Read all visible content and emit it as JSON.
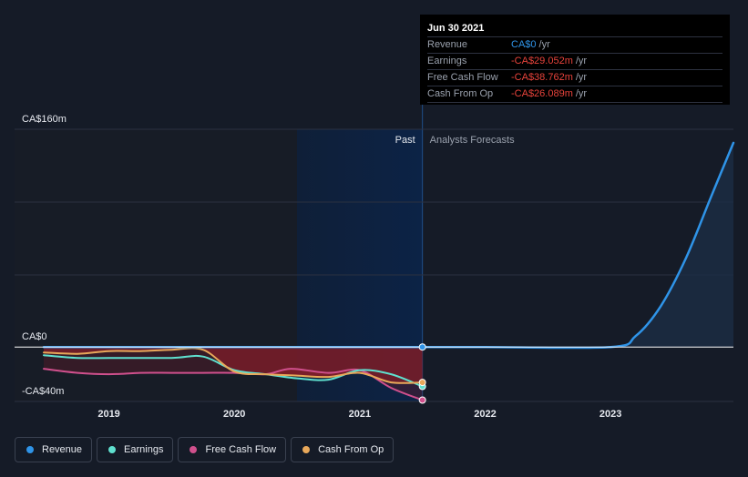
{
  "tooltip": {
    "date": "Jun 30 2021",
    "rows": [
      {
        "name": "Revenue",
        "value": "CA$0",
        "unit": "/yr",
        "negative": false
      },
      {
        "name": "Earnings",
        "value": "-CA$29.052m",
        "unit": "/yr",
        "negative": true
      },
      {
        "name": "Free Cash Flow",
        "value": "-CA$38.762m",
        "unit": "/yr",
        "negative": true
      },
      {
        "name": "Cash From Op",
        "value": "-CA$26.089m",
        "unit": "/yr",
        "negative": true
      }
    ]
  },
  "legend": [
    {
      "label": "Revenue",
      "color": "#2f94e8"
    },
    {
      "label": "Earnings",
      "color": "#5fe0cf"
    },
    {
      "label": "Free Cash Flow",
      "color": "#d0508d"
    },
    {
      "label": "Cash From Op",
      "color": "#e8a85a"
    }
  ],
  "chart_data": {
    "type": "line",
    "y_tick_labels": [
      "CA$160m",
      "CA$0",
      "-CA$40m"
    ],
    "ylim": [
      -40,
      160
    ],
    "x_tick_labels": [
      "2019",
      "2020",
      "2021",
      "2022",
      "2023"
    ],
    "xlim": [
      2018.48,
      2023.98
    ],
    "past_label": "Past",
    "forecast_label": "Analysts Forecasts",
    "divider_x": 2021.5,
    "highlight_start_x": 2020.5,
    "y_unit": "CA$m",
    "series": [
      {
        "name": "Revenue",
        "color": "#2f94e8",
        "x": [
          2018.48,
          2019.0,
          2020.0,
          2021.0,
          2021.5,
          2022.0,
          2023.0,
          2023.2,
          2023.4,
          2023.6,
          2023.8,
          2023.98
        ],
        "y": [
          0,
          0,
          0,
          0,
          0,
          0,
          0,
          8,
          30,
          65,
          110,
          150
        ]
      },
      {
        "name": "Earnings",
        "color": "#5fe0cf",
        "x": [
          2018.48,
          2018.75,
          2019.0,
          2019.5,
          2019.75,
          2020.0,
          2020.25,
          2020.5,
          2020.75,
          2021.0,
          2021.25,
          2021.5
        ],
        "y": [
          -6,
          -8,
          -8,
          -8,
          -7,
          -17,
          -20,
          -23,
          -24,
          -17,
          -20,
          -29
        ]
      },
      {
        "name": "Free Cash Flow",
        "color": "#d0508d",
        "x": [
          2018.48,
          2018.75,
          2019.0,
          2019.25,
          2019.5,
          2019.75,
          2020.0,
          2020.25,
          2020.45,
          2020.75,
          2021.0,
          2021.25,
          2021.5
        ],
        "y": [
          -16,
          -19,
          -20,
          -19,
          -19,
          -19,
          -19,
          -20,
          -16,
          -19,
          -17,
          -30,
          -39
        ]
      },
      {
        "name": "Cash From Op",
        "color": "#e8a85a",
        "x": [
          2018.48,
          2018.75,
          2019.0,
          2019.25,
          2019.5,
          2019.75,
          2020.0,
          2020.25,
          2020.5,
          2020.75,
          2021.0,
          2021.25,
          2021.5
        ],
        "y": [
          -4,
          -5,
          -3,
          -3,
          -2,
          -2,
          -18,
          -20,
          -21,
          -22,
          -19,
          -26,
          -26
        ]
      }
    ]
  }
}
